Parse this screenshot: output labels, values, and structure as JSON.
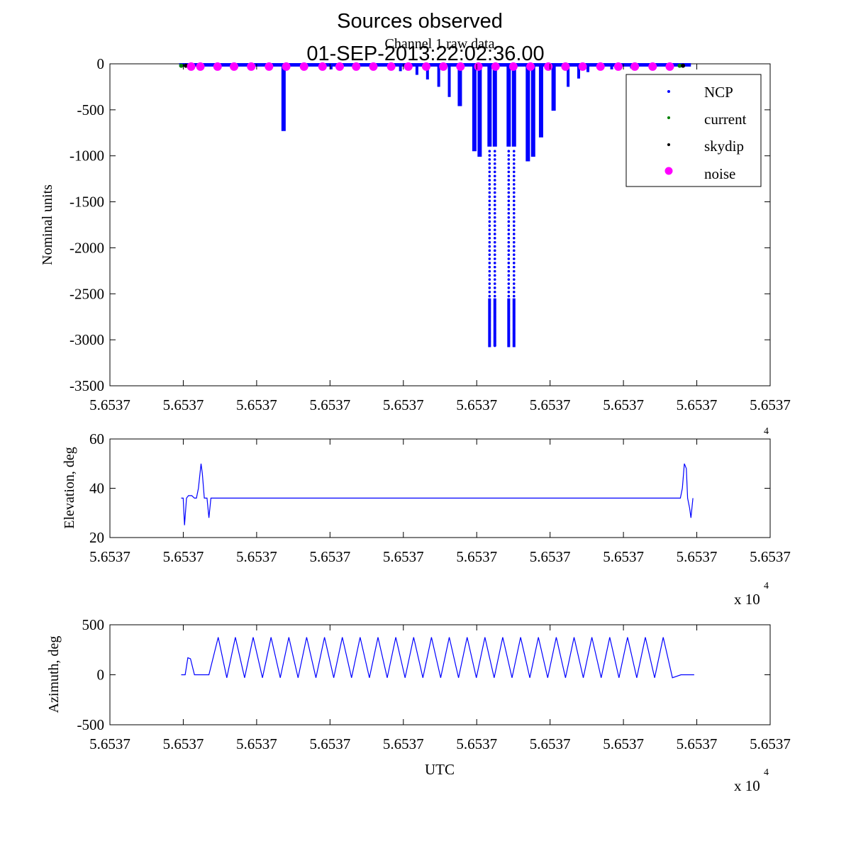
{
  "figure": {
    "title_line1": "Sources observed",
    "title_line2": "01-SEP-2013:22:02:36.00"
  },
  "chart_data": [
    {
      "id": "raw",
      "type": "scatter",
      "title": "Channel 1 raw data",
      "xlabel": "",
      "ylabel": "Nominal units",
      "xlim": [
        0,
        1
      ],
      "ylim": [
        -3500,
        0
      ],
      "yticks": [
        0,
        -500,
        -1000,
        -1500,
        -2000,
        -2500,
        -3000,
        -3500
      ],
      "xtick_labels": [
        "5.6537",
        "5.6537",
        "5.6537",
        "5.6537",
        "5.6537",
        "5.6537",
        "5.6537",
        "5.6537",
        "5.6537",
        "5.6537"
      ],
      "legend": {
        "position": "top-right",
        "entries": [
          {
            "label": "NCP",
            "color": "#0000ff",
            "marker": "dot"
          },
          {
            "label": "current",
            "color": "#008000",
            "marker": "dot"
          },
          {
            "label": "skydip",
            "color": "#000000",
            "marker": "dot"
          },
          {
            "label": "noise",
            "color": "#ff00ff",
            "marker": "circle"
          }
        ]
      },
      "ncp_spikes": [
        {
          "x": 0.263,
          "min": -730
        },
        {
          "x": 0.335,
          "min": -60
        },
        {
          "x": 0.4,
          "min": -60
        },
        {
          "x": 0.44,
          "min": -80
        },
        {
          "x": 0.465,
          "min": -120
        },
        {
          "x": 0.481,
          "min": -170
        },
        {
          "x": 0.498,
          "min": -250
        },
        {
          "x": 0.514,
          "min": -360
        },
        {
          "x": 0.53,
          "min": -460
        },
        {
          "x": 0.552,
          "min": -950
        },
        {
          "x": 0.56,
          "min": -1010
        },
        {
          "x": 0.575,
          "min": -3080
        },
        {
          "x": 0.583,
          "min": -3070
        },
        {
          "x": 0.604,
          "min": -3080
        },
        {
          "x": 0.612,
          "min": -3080
        },
        {
          "x": 0.633,
          "min": -1060
        },
        {
          "x": 0.641,
          "min": -1010
        },
        {
          "x": 0.653,
          "min": -800
        },
        {
          "x": 0.672,
          "min": -510
        },
        {
          "x": 0.694,
          "min": -250
        },
        {
          "x": 0.71,
          "min": -160
        },
        {
          "x": 0.724,
          "min": -90
        },
        {
          "x": 0.76,
          "min": -60
        },
        {
          "x": 0.79,
          "min": -50
        }
      ],
      "current_x": [
        0.108,
        0.863
      ],
      "skydip_x": [
        0.115,
        0.868
      ],
      "noise_x": [
        0.123,
        0.137,
        0.163,
        0.188,
        0.214,
        0.241,
        0.267,
        0.294,
        0.322,
        0.348,
        0.373,
        0.399,
        0.426,
        0.452,
        0.479,
        0.505,
        0.531,
        0.558,
        0.584,
        0.611,
        0.637,
        0.664,
        0.69,
        0.716,
        0.743,
        0.77,
        0.795,
        0.822,
        0.848
      ]
    },
    {
      "id": "elevation",
      "type": "line",
      "ylabel": "Elevation, deg",
      "ylim": [
        20,
        60
      ],
      "yticks": [
        60,
        40,
        20
      ],
      "xtick_labels": [
        "5.6537",
        "5.6537",
        "5.6537",
        "5.6537",
        "5.6537",
        "5.6537",
        "5.6537",
        "5.6537",
        "5.6537",
        "5.6537"
      ],
      "xscale_label": "x 10",
      "xscale_exp": "4",
      "color": "#0000ff",
      "x": [
        0.108,
        0.111,
        0.113,
        0.116,
        0.119,
        0.124,
        0.128,
        0.131,
        0.134,
        0.138,
        0.14,
        0.143,
        0.147,
        0.15,
        0.153,
        0.158,
        0.86,
        0.864,
        0.867,
        0.87,
        0.873,
        0.875,
        0.878,
        0.88,
        0.883
      ],
      "y": [
        36,
        36,
        25,
        36,
        37,
        37,
        36,
        36,
        40,
        50,
        46,
        36,
        36,
        28,
        36,
        36,
        36,
        36,
        40,
        50,
        48,
        36,
        32,
        28,
        36
      ]
    },
    {
      "id": "azimuth",
      "type": "line",
      "ylabel": "Azimuth, deg",
      "xlabel": "UTC",
      "ylim": [
        -500,
        500
      ],
      "yticks": [
        500,
        0,
        -500
      ],
      "xtick_labels": [
        "5.6537",
        "5.6537",
        "5.6537",
        "5.6537",
        "5.6537",
        "5.6537",
        "5.6537",
        "5.6537",
        "5.6537",
        "5.6537"
      ],
      "xscale_label": "x 10",
      "xscale_exp": "4",
      "color": "#0000ff",
      "x": [
        0.108,
        0.114,
        0.118,
        0.122,
        0.128,
        0.15,
        0.164,
        0.177,
        0.19,
        0.204,
        0.217,
        0.231,
        0.244,
        0.258,
        0.271,
        0.285,
        0.298,
        0.312,
        0.325,
        0.339,
        0.352,
        0.366,
        0.379,
        0.393,
        0.406,
        0.42,
        0.433,
        0.447,
        0.46,
        0.474,
        0.487,
        0.501,
        0.514,
        0.528,
        0.541,
        0.555,
        0.568,
        0.582,
        0.595,
        0.609,
        0.622,
        0.636,
        0.649,
        0.663,
        0.676,
        0.69,
        0.703,
        0.717,
        0.73,
        0.744,
        0.757,
        0.771,
        0.784,
        0.798,
        0.811,
        0.825,
        0.838,
        0.852,
        0.865,
        0.885
      ],
      "y": [
        0,
        0,
        170,
        160,
        0,
        0,
        375,
        -30,
        375,
        -30,
        375,
        -30,
        375,
        -30,
        375,
        -30,
        375,
        -30,
        375,
        -30,
        375,
        -30,
        375,
        -30,
        375,
        -30,
        375,
        -30,
        375,
        -30,
        375,
        -30,
        375,
        -30,
        375,
        -30,
        375,
        -30,
        375,
        -30,
        375,
        -30,
        375,
        -30,
        375,
        -30,
        375,
        -30,
        375,
        -30,
        375,
        -30,
        375,
        -30,
        375,
        -30,
        375,
        -30,
        0,
        0
      ]
    }
  ]
}
